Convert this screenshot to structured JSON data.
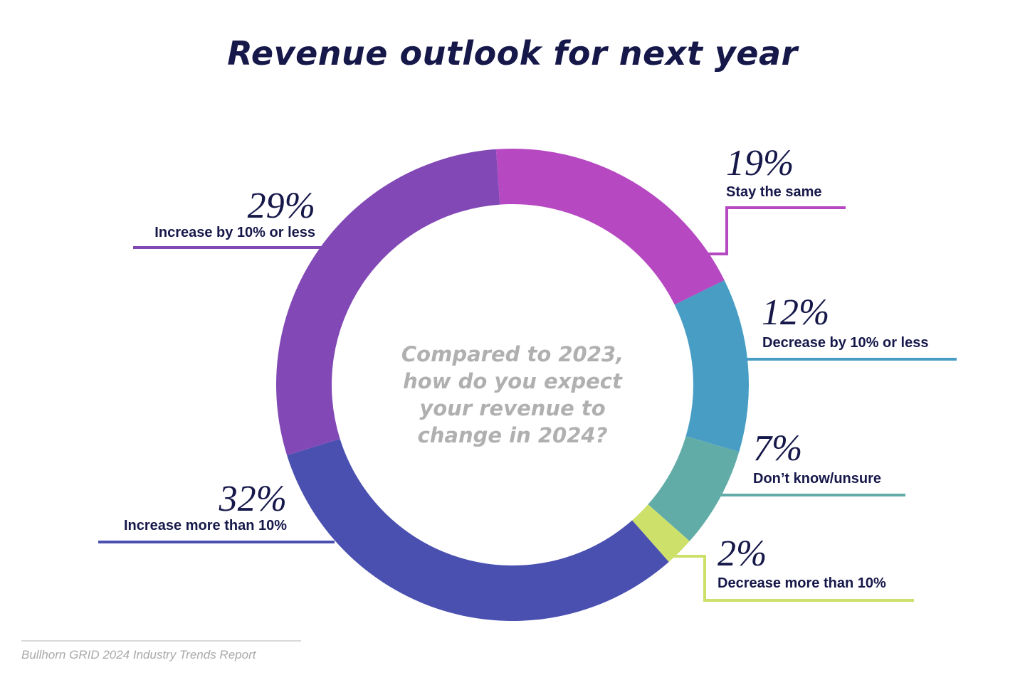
{
  "chart_data": {
    "type": "pie",
    "variant": "donut",
    "title": "Revenue outlook for next year",
    "center_text": [
      "Compared to 2023,",
      "how do you expect",
      "your revenue to",
      "change in 2024?"
    ],
    "unit": "%",
    "slices": [
      {
        "label": "Stay the same",
        "value": 19,
        "display": "19%",
        "color": "#b648c2"
      },
      {
        "label": "Decrease by 10% or less",
        "value": 12,
        "display": "12%",
        "color": "#489dc4"
      },
      {
        "label": "Don’t know/unsure",
        "value": 7,
        "display": "7%",
        "color": "#62aca8"
      },
      {
        "label": "Decrease more than 10%",
        "value": 2,
        "display": "2%",
        "color": "#cce06a"
      },
      {
        "label": "Increase more than 10%",
        "value": 32,
        "display": "32%",
        "color": "#4a50b0"
      },
      {
        "label": "Increase by 10% or less",
        "value": 29,
        "display": "29%",
        "color": "#8249b6"
      }
    ]
  },
  "source": "Bullhorn GRID 2024 Industry Trends Report"
}
